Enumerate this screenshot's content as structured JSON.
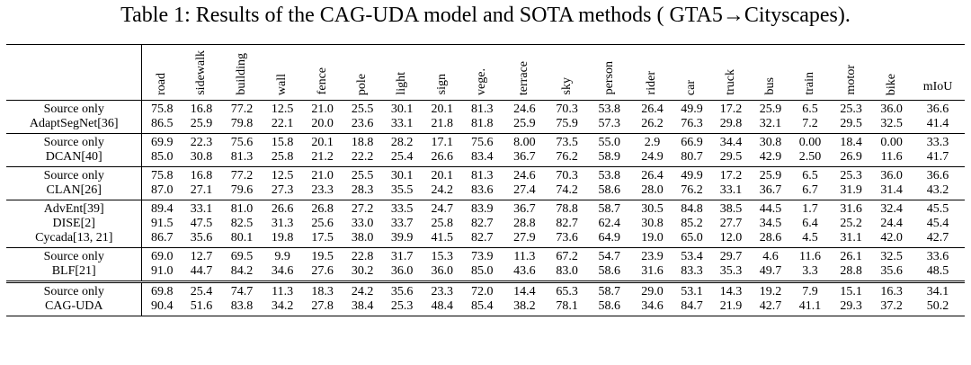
{
  "caption": "Table 1: Results of the CAG-UDA model and SOTA methods ( GTA5→Cityscapes).",
  "columns": [
    "road",
    "sidewalk",
    "building",
    "wall",
    "fence",
    "pole",
    "light",
    "sign",
    "vege.",
    "terrace",
    "sky",
    "person",
    "rider",
    "car",
    "truck",
    "bus",
    "train",
    "motor",
    "bike",
    "mIoU"
  ],
  "groups": [
    {
      "rows": [
        {
          "method": "Source only",
          "values": [
            "75.8",
            "16.8",
            "77.2",
            "12.5",
            "21.0",
            "25.5",
            "30.1",
            "20.1",
            "81.3",
            "24.6",
            "70.3",
            "53.8",
            "26.4",
            "49.9",
            "17.2",
            "25.9",
            "6.5",
            "25.3",
            "36.0",
            "36.6"
          ],
          "bold": []
        },
        {
          "method": "AdaptSegNet[36]",
          "values": [
            "86.5",
            "25.9",
            "79.8",
            "22.1",
            "20.0",
            "23.6",
            "33.1",
            "21.8",
            "81.8",
            "25.9",
            "75.9",
            "57.3",
            "26.2",
            "76.3",
            "29.8",
            "32.1",
            "7.2",
            "29.5",
            "32.5",
            "41.4"
          ],
          "bold": []
        }
      ]
    },
    {
      "rows": [
        {
          "method": "Source only",
          "values": [
            "69.9",
            "22.3",
            "75.6",
            "15.8",
            "20.1",
            "18.8",
            "28.2",
            "17.1",
            "75.6",
            "8.00",
            "73.5",
            "55.0",
            "2.9",
            "66.9",
            "34.4",
            "30.8",
            "0.00",
            "18.4",
            "0.00",
            "33.3"
          ],
          "bold": []
        },
        {
          "method": "DCAN[40]",
          "values": [
            "85.0",
            "30.8",
            "81.3",
            "25.8",
            "21.2",
            "22.2",
            "25.4",
            "26.6",
            "83.4",
            "36.7",
            "76.2",
            "58.9",
            "24.9",
            "80.7",
            "29.5",
            "42.9",
            "2.50",
            "26.9",
            "11.6",
            "41.7"
          ],
          "bold": []
        }
      ]
    },
    {
      "rows": [
        {
          "method": "Source only",
          "values": [
            "75.8",
            "16.8",
            "77.2",
            "12.5",
            "21.0",
            "25.5",
            "30.1",
            "20.1",
            "81.3",
            "24.6",
            "70.3",
            "53.8",
            "26.4",
            "49.9",
            "17.2",
            "25.9",
            "6.5",
            "25.3",
            "36.0",
            "36.6"
          ],
          "bold": []
        },
        {
          "method": "CLAN[26]",
          "values": [
            "87.0",
            "27.1",
            "79.6",
            "27.3",
            "23.3",
            "28.3",
            "35.5",
            "24.2",
            "83.6",
            "27.4",
            "74.2",
            "58.6",
            "28.0",
            "76.2",
            "33.1",
            "36.7",
            "6.7",
            "31.9",
            "31.4",
            "43.2"
          ],
          "bold": [
            17
          ]
        }
      ]
    },
    {
      "rows": [
        {
          "method": "AdvEnt[39]",
          "values": [
            "89.4",
            "33.1",
            "81.0",
            "26.6",
            "26.8",
            "27.2",
            "33.5",
            "24.7",
            "83.9",
            "36.7",
            "78.8",
            "58.7",
            "30.5",
            "84.8",
            "38.5",
            "44.5",
            "1.7",
            "31.6",
            "32.4",
            "45.5"
          ],
          "bold": [
            14
          ]
        },
        {
          "method": "DISE[2]",
          "values": [
            "91.5",
            "47.5",
            "82.5",
            "31.3",
            "25.6",
            "33.0",
            "33.7",
            "25.8",
            "82.7",
            "28.8",
            "82.7",
            "62.4",
            "30.8",
            "85.2",
            "27.7",
            "34.5",
            "6.4",
            "25.2",
            "24.4",
            "45.4"
          ],
          "bold": [
            0,
            13
          ]
        },
        {
          "method": "Cycada[13, 21]",
          "values": [
            "86.7",
            "35.6",
            "80.1",
            "19.8",
            "17.5",
            "38.0",
            "39.9",
            "41.5",
            "82.7",
            "27.9",
            "73.6",
            "64.9",
            "19.0",
            "65.0",
            "12.0",
            "28.6",
            "4.5",
            "31.1",
            "42.0",
            "42.7"
          ],
          "bold": [
            6,
            11
          ]
        }
      ]
    },
    {
      "rows": [
        {
          "method": "Source only",
          "values": [
            "69.0",
            "12.7",
            "69.5",
            "9.9",
            "19.5",
            "22.8",
            "31.7",
            "15.3",
            "73.9",
            "11.3",
            "67.2",
            "54.7",
            "23.9",
            "53.4",
            "29.7",
            "4.6",
            "11.6",
            "26.1",
            "32.5",
            "33.6"
          ],
          "bold": []
        },
        {
          "method": "BLF[21]",
          "values": [
            "91.0",
            "44.7",
            "84.2",
            "34.6",
            "27.6",
            "30.2",
            "36.0",
            "36.0",
            "85.0",
            "43.6",
            "83.0",
            "58.6",
            "31.6",
            "83.3",
            "35.3",
            "49.7",
            "3.3",
            "28.8",
            "35.6",
            "48.5"
          ],
          "bold": [
            2,
            3,
            9,
            10,
            15
          ]
        }
      ]
    },
    {
      "rows": [
        {
          "method": "Source only",
          "values": [
            "69.8",
            "25.4",
            "74.7",
            "11.3",
            "18.3",
            "24.2",
            "35.6",
            "23.3",
            "72.0",
            "14.4",
            "65.3",
            "58.7",
            "29.0",
            "53.1",
            "14.3",
            "19.2",
            "7.9",
            "15.1",
            "16.3",
            "34.1"
          ],
          "bold": []
        },
        {
          "method": "CAG-UDA",
          "values": [
            "90.4",
            "51.6",
            "83.8",
            "34.2",
            "27.8",
            "38.4",
            "25.3",
            "48.4",
            "85.4",
            "38.2",
            "78.1",
            "58.6",
            "34.6",
            "84.7",
            "21.9",
            "42.7",
            "41.1",
            "29.3",
            "37.2",
            "50.2"
          ],
          "bold": [
            1,
            4,
            5,
            7,
            8,
            12,
            16,
            18,
            19
          ]
        }
      ]
    }
  ]
}
